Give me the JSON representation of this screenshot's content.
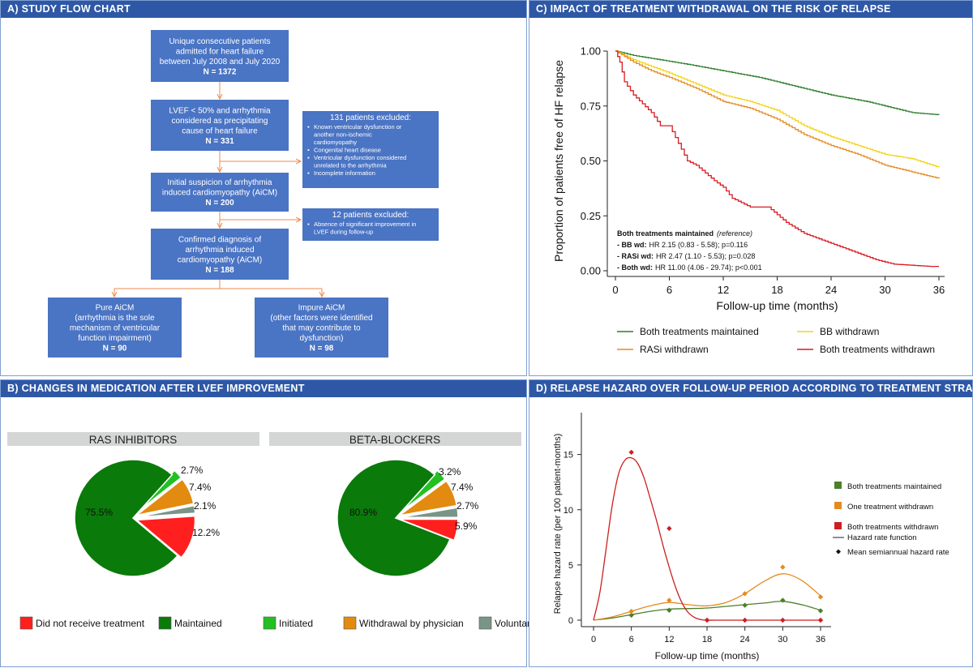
{
  "panels": {
    "a_title": "A)  STUDY FLOW CHART",
    "b_title": "B)  CHANGES IN MEDICATION AFTER LVEF IMPROVEMENT",
    "c_title": "C)  IMPACT OF TREATMENT WITHDRAWAL ON THE RISK OF RELAPSE",
    "d_title": "D)  RELAPSE HAZARD OVER FOLLOW-UP PERIOD ACCORDING TO TREATMENT STRATEGY"
  },
  "flow": {
    "box1": {
      "lines": [
        "Unique consecutive patients",
        "admitted for heart failure",
        "between July 2008 and July 2020"
      ],
      "n": "N = 1372"
    },
    "box2": {
      "lines": [
        "LVEF < 50% and arrhythmia",
        "considered as precipitating",
        "cause of heart failure"
      ],
      "n": "N = 331"
    },
    "box3": {
      "lines": [
        "Initial suspicion of arrhythmia",
        "induced cardiomyopathy (AiCM)"
      ],
      "n": "N = 200"
    },
    "box4": {
      "lines": [
        "Confirmed diagnosis of",
        "arrhythmia induced",
        "cardiomyopathy (AiCM)"
      ],
      "n": "N = 188"
    },
    "excl1": {
      "title": "131 patients excluded:",
      "items": [
        "Known ventricular dysfunction or",
        "another non-ischemic",
        "cardiomyopathy",
        "Congenital heart disease",
        "Ventricular dysfunction considered",
        "unrelated to the arrhythmia",
        "Incomplete information"
      ]
    },
    "excl2": {
      "title": "12 patients excluded:",
      "items": [
        "Absence of significant improvement in",
        "LVEF during follow-up"
      ]
    },
    "pure": {
      "lines": [
        "Pure AiCM",
        "(arrhythmia is the sole",
        "mechanism of ventricular",
        "function impairment)"
      ],
      "n": "N = 90"
    },
    "impure": {
      "lines": [
        "Impure AiCM",
        "(other factors were identified",
        "that may contribute to",
        "dysfunction)"
      ],
      "n": "N = 98"
    },
    "bullet": "▪"
  },
  "chart_data": [
    {
      "type": "pie",
      "title": "RAS INHIBITORS",
      "slices": [
        {
          "label": "Initiated",
          "value": 2.7,
          "text": "2.7%"
        },
        {
          "label": "Withdrawal by physician",
          "value": 7.4,
          "text": "7.4%"
        },
        {
          "label": "Voluntary withdrawal",
          "value": 2.1,
          "text": "2.1%"
        },
        {
          "label": "Did not receive treatment",
          "value": 12.2,
          "text": "12.2%"
        },
        {
          "label": "Maintained",
          "value": 75.5,
          "text": "75.5%"
        }
      ]
    },
    {
      "type": "pie",
      "title": "BETA-BLOCKERS",
      "slices": [
        {
          "label": "Initiated",
          "value": 3.2,
          "text": "3.2%"
        },
        {
          "label": "Withdrawal by physician",
          "value": 7.4,
          "text": "7.4%"
        },
        {
          "label": "Voluntary withdrawal",
          "value": 2.7,
          "text": "2.7%"
        },
        {
          "label": "Did not receive treatment",
          "value": 5.9,
          "text": "5.9%"
        },
        {
          "label": "Maintained",
          "value": 80.9,
          "text": "80.9%"
        }
      ]
    },
    {
      "type": "line",
      "subtype": "kaplan-meier",
      "xlabel": "Follow-up time (months)",
      "ylabel": "Proportion of patients free of HF relapse",
      "xlim": [
        0,
        36
      ],
      "ylim": [
        0,
        1
      ],
      "xticks": [
        "0",
        "6",
        "12",
        "18",
        "24",
        "30",
        "36"
      ],
      "yticks": [
        "0.00",
        "0.25",
        "0.50",
        "0.75",
        "1.00"
      ],
      "series": [
        {
          "name": "Both treatments maintained",
          "x": [
            0,
            2,
            5,
            8,
            12,
            16,
            20,
            24,
            28,
            30,
            33,
            36
          ],
          "y": [
            1.0,
            0.98,
            0.96,
            0.94,
            0.91,
            0.88,
            0.84,
            0.8,
            0.77,
            0.75,
            0.72,
            0.71
          ]
        },
        {
          "name": "BB withdrawn",
          "x": [
            0,
            2,
            4,
            6,
            9,
            12,
            15,
            18,
            21,
            24,
            27,
            30,
            33,
            36
          ],
          "y": [
            1.0,
            0.96,
            0.93,
            0.9,
            0.85,
            0.8,
            0.77,
            0.73,
            0.66,
            0.61,
            0.57,
            0.53,
            0.51,
            0.47
          ]
        },
        {
          "name": "RASi withdrawn",
          "x": [
            0,
            2,
            4,
            6,
            9,
            12,
            15,
            18,
            21,
            24,
            27,
            30,
            33,
            36
          ],
          "y": [
            1.0,
            0.95,
            0.91,
            0.88,
            0.83,
            0.77,
            0.74,
            0.69,
            0.62,
            0.57,
            0.53,
            0.48,
            0.45,
            0.42
          ]
        },
        {
          "name": "Both treatments withdrawn",
          "x": [
            0,
            0.5,
            1,
            2,
            3,
            4,
            5,
            6,
            7,
            8,
            9,
            11,
            12,
            13,
            15,
            17,
            19,
            21,
            23,
            25,
            27,
            29,
            31,
            33,
            35,
            36
          ],
          "y": [
            1.0,
            0.95,
            0.86,
            0.8,
            0.76,
            0.72,
            0.66,
            0.66,
            0.58,
            0.5,
            0.48,
            0.41,
            0.38,
            0.33,
            0.29,
            0.29,
            0.22,
            0.17,
            0.14,
            0.11,
            0.08,
            0.05,
            0.03,
            0.025,
            0.02,
            0.02
          ]
        }
      ],
      "annotation": {
        "title": "Both treatments maintained",
        "title_suffix": "(reference)",
        "rows": [
          {
            "label": "- BB wd:",
            "text": "HR 2.15 (0.83 - 5.58); p=0.116"
          },
          {
            "label": "- RASi wd:",
            "text": "HR 2.47 (1.10 - 5.53); p=0.028"
          },
          {
            "label": "- Both wd:",
            "text": "HR 11.00 (4.06 - 29.74); p<0.001"
          }
        ]
      }
    },
    {
      "type": "line",
      "subtype": "hazard",
      "xlabel": "Follow-up time (months)",
      "ylabel": "Relapse hazard rate (per 100 patient-months)",
      "xlim": [
        0,
        36
      ],
      "ylim": [
        0,
        16
      ],
      "xticks": [
        "0",
        "6",
        "12",
        "18",
        "24",
        "30",
        "36"
      ],
      "yticks": [
        "0",
        "5",
        "10",
        "15"
      ],
      "series": [
        {
          "name": "Both treatments maintained",
          "curve_x": [
            0,
            3,
            6,
            9,
            12,
            15,
            18,
            21,
            24,
            27,
            30,
            33,
            36
          ],
          "curve_y": [
            0,
            0.2,
            0.5,
            0.8,
            1.0,
            1.05,
            1.1,
            1.25,
            1.4,
            1.55,
            1.7,
            1.4,
            0.9
          ],
          "points_x": [
            6,
            12,
            24,
            30,
            36
          ],
          "points_y": [
            0.45,
            0.9,
            1.35,
            1.8,
            0.85
          ]
        },
        {
          "name": "One treatment withdrawn",
          "curve_x": [
            0,
            3,
            6,
            9,
            12,
            15,
            18,
            21,
            24,
            27,
            30,
            33,
            36
          ],
          "curve_y": [
            0,
            0.3,
            0.8,
            1.3,
            1.6,
            1.4,
            1.3,
            1.6,
            2.4,
            3.5,
            4.2,
            3.6,
            2.2
          ],
          "points_x": [
            6,
            12,
            24,
            30,
            36
          ],
          "points_y": [
            0.8,
            1.8,
            2.4,
            4.8,
            2.1
          ]
        },
        {
          "name": "Both treatments withdrawn",
          "curve_x": [
            0,
            1,
            2,
            3,
            4,
            5,
            6,
            7,
            8,
            9,
            10,
            11,
            12,
            13,
            14,
            15,
            16,
            17,
            18,
            20,
            22,
            24,
            30,
            36
          ],
          "curve_y": [
            0,
            2.5,
            6.5,
            10.5,
            13.3,
            14.5,
            14.7,
            14.2,
            12.9,
            11.0,
            9.0,
            6.8,
            4.8,
            3.0,
            1.6,
            0.7,
            0.25,
            0.05,
            0,
            0,
            0,
            0,
            0,
            0
          ],
          "points_x": [
            6,
            12,
            18,
            24,
            30,
            36
          ],
          "points_y": [
            15.2,
            8.3,
            0,
            0,
            0,
            0
          ]
        }
      ],
      "legend_extra": [
        "Hazard rate function",
        "Mean semiannual hazard rate"
      ]
    }
  ],
  "pie_legend": [
    {
      "label": "Did not receive treatment",
      "color": "#ff1f1f"
    },
    {
      "label": "Maintained",
      "color": "#0a7a0a"
    },
    {
      "label": "Initiated",
      "color": "#22c022"
    },
    {
      "label": "Withdrawal by physician",
      "color": "#e38a10"
    },
    {
      "label": "Voluntary withdrawal",
      "color": "#7a9488"
    }
  ],
  "colors": {
    "header": "#2e58a6",
    "box": "#4a74c4",
    "arrow": "#f08a4b",
    "km_green": "#2d7d2d",
    "km_yellow": "#f2d41a",
    "km_orange": "#e38a22",
    "km_red": "#d81b22",
    "hz_green": "#4d7f2b",
    "hz_orange": "#e58a21",
    "hz_red": "#cc1f1f"
  }
}
